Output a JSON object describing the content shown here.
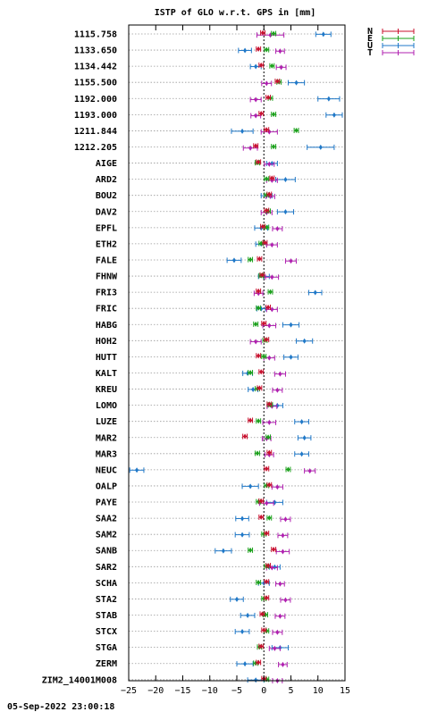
{
  "chart_data": {
    "type": "scatter",
    "title": "ISTP of GLO w.r.t. GPS in [mm]",
    "footer": "05-Sep-2022 23:00:18",
    "xlim": [
      -25,
      15
    ],
    "xticks": [
      -25,
      -20,
      -15,
      -10,
      -5,
      0,
      5,
      10,
      15
    ],
    "grid": true,
    "legend_position": "top-right",
    "series": [
      {
        "name": "N",
        "color": "#c8102e"
      },
      {
        "name": "E",
        "color": "#1aa01a"
      },
      {
        "name": "U",
        "color": "#1f78c8"
      },
      {
        "name": "T",
        "color": "#b020b0"
      }
    ],
    "stations": [
      {
        "label": "1115.758",
        "N": [
          -0.2,
          0.4
        ],
        "E": [
          1.8,
          0.4
        ],
        "U": [
          11,
          1.4
        ],
        "T": [
          1.2,
          2.5
        ]
      },
      {
        "label": "1133.650",
        "N": [
          -1.0,
          0.4
        ],
        "E": [
          0.5,
          0.4
        ],
        "U": [
          -3.5,
          1.2
        ],
        "T": [
          3.0,
          0.8
        ]
      },
      {
        "label": "1134.442",
        "N": [
          -0.5,
          0.4
        ],
        "E": [
          1.5,
          0.4
        ],
        "U": [
          -1.5,
          1.0
        ],
        "T": [
          3.2,
          0.9
        ]
      },
      {
        "label": "1155.500",
        "N": [
          2.5,
          0.4
        ],
        "E": [
          2.8,
          0.4
        ],
        "U": [
          6.0,
          1.5
        ],
        "T": [
          0.5,
          0.9
        ]
      },
      {
        "label": "1192.000",
        "N": [
          0.8,
          0.4
        ],
        "E": [
          1.2,
          0.4
        ],
        "U": [
          12,
          2.0
        ],
        "T": [
          -1.5,
          1.0
        ]
      },
      {
        "label": "1193.000",
        "N": [
          -0.5,
          0.4
        ],
        "E": [
          1.8,
          0.4
        ],
        "U": [
          13,
          1.5
        ],
        "T": [
          -1.5,
          0.9
        ]
      },
      {
        "label": "1211.844",
        "N": [
          0.5,
          0.4
        ],
        "E": [
          6.0,
          0.4
        ],
        "U": [
          -4.0,
          2.0
        ],
        "T": [
          1.0,
          1.5
        ]
      },
      {
        "label": "1212.205",
        "N": [
          -1.5,
          0.4
        ],
        "E": [
          1.8,
          0.4
        ],
        "U": [
          10.5,
          2.5
        ],
        "T": [
          -2.5,
          1.3
        ]
      },
      {
        "label": "AIGE",
        "N": [
          -1.0,
          0.4
        ],
        "E": [
          -1.2,
          0.4
        ],
        "U": [
          1.5,
          1.0
        ],
        "T": [
          1.0,
          0.9
        ]
      },
      {
        "label": "ARD2",
        "N": [
          1.5,
          0.4
        ],
        "E": [
          0.5,
          0.4
        ],
        "U": [
          4.0,
          1.8
        ],
        "T": [
          1.5,
          1.0
        ]
      },
      {
        "label": "BOU2",
        "N": [
          1.0,
          0.4
        ],
        "E": [
          0.5,
          0.4
        ],
        "U": [
          0.5,
          1.0
        ],
        "T": [
          1.2,
          0.8
        ]
      },
      {
        "label": "DAV2",
        "N": [
          0.5,
          0.4
        ],
        "E": [
          0.8,
          0.4
        ],
        "U": [
          4.0,
          1.5
        ],
        "T": [
          0.5,
          1.0
        ]
      },
      {
        "label": "EPFL",
        "N": [
          -0.2,
          0.4
        ],
        "E": [
          0.5,
          0.4
        ],
        "U": [
          -0.5,
          1.2
        ],
        "T": [
          2.5,
          0.9
        ]
      },
      {
        "label": "ETH2",
        "N": [
          0.2,
          0.4
        ],
        "E": [
          -0.5,
          0.4
        ],
        "U": [
          -0.5,
          1.0
        ],
        "T": [
          1.5,
          1.0
        ]
      },
      {
        "label": "FALE",
        "N": [
          -0.8,
          0.4
        ],
        "E": [
          -2.5,
          0.4
        ],
        "U": [
          -5.5,
          1.3
        ],
        "T": [
          5.0,
          1.0
        ]
      },
      {
        "label": "FHNW",
        "N": [
          -0.3,
          0.4
        ],
        "E": [
          -0.5,
          0.4
        ],
        "U": [
          0.0,
          1.0
        ],
        "T": [
          1.5,
          1.2
        ]
      },
      {
        "label": "FRI3",
        "N": [
          -1.0,
          0.4
        ],
        "E": [
          1.2,
          0.4
        ],
        "U": [
          9.5,
          1.2
        ],
        "T": [
          -1.0,
          0.8
        ]
      },
      {
        "label": "FRIC",
        "N": [
          0.8,
          0.4
        ],
        "E": [
          -1.0,
          0.4
        ],
        "U": [
          -0.5,
          0.8
        ],
        "T": [
          1.5,
          1.0
        ]
      },
      {
        "label": "HABG",
        "N": [
          0.0,
          0.4
        ],
        "E": [
          -1.5,
          0.4
        ],
        "U": [
          5.0,
          1.5
        ],
        "T": [
          1.0,
          1.2
        ]
      },
      {
        "label": "HOH2",
        "N": [
          0.5,
          0.4
        ],
        "E": [
          0.2,
          0.4
        ],
        "U": [
          7.5,
          1.5
        ],
        "T": [
          -1.5,
          1.0
        ]
      },
      {
        "label": "HUTT",
        "N": [
          -1.0,
          0.4
        ],
        "E": [
          0.0,
          0.4
        ],
        "U": [
          5.0,
          1.3
        ],
        "T": [
          1.0,
          1.0
        ]
      },
      {
        "label": "KALT",
        "N": [
          -0.5,
          0.4
        ],
        "E": [
          -2.5,
          0.4
        ],
        "U": [
          -3.0,
          0.9
        ],
        "T": [
          3.0,
          1.0
        ]
      },
      {
        "label": "KREU",
        "N": [
          -0.8,
          0.4
        ],
        "E": [
          -1.2,
          0.4
        ],
        "U": [
          -2.0,
          0.9
        ],
        "T": [
          2.5,
          0.9
        ]
      },
      {
        "label": "LOMO",
        "N": [
          1.0,
          0.4
        ],
        "E": [
          1.2,
          0.4
        ],
        "U": [
          2.5,
          1.0
        ],
        "T": [
          1.5,
          0.9
        ]
      },
      {
        "label": "LUZE",
        "N": [
          -2.5,
          0.4
        ],
        "E": [
          -1.0,
          0.4
        ],
        "U": [
          7.0,
          1.3
        ],
        "T": [
          1.0,
          1.2
        ]
      },
      {
        "label": "MAR2",
        "N": [
          -3.5,
          0.4
        ],
        "E": [
          0.8,
          0.4
        ],
        "U": [
          7.5,
          1.2
        ],
        "T": [
          0.5,
          0.8
        ]
      },
      {
        "label": "MAR3",
        "N": [
          1.0,
          0.4
        ],
        "E": [
          -1.2,
          0.4
        ],
        "U": [
          7.0,
          1.3
        ],
        "T": [
          1.0,
          0.8
        ]
      },
      {
        "label": "NEUC",
        "N": [
          0.5,
          0.4
        ],
        "E": [
          4.5,
          0.4
        ],
        "U": [
          -23.5,
          1.3
        ],
        "T": [
          8.5,
          1.0
        ]
      },
      {
        "label": "OALP",
        "N": [
          1.0,
          0.4
        ],
        "E": [
          0.5,
          0.4
        ],
        "U": [
          -2.5,
          1.5
        ],
        "T": [
          2.5,
          1.0
        ]
      },
      {
        "label": "PAYE",
        "N": [
          -0.5,
          0.4
        ],
        "E": [
          -1.0,
          0.4
        ],
        "U": [
          2.0,
          1.5
        ],
        "T": [
          0.5,
          1.3
        ]
      },
      {
        "label": "SAA2",
        "N": [
          -0.5,
          0.4
        ],
        "E": [
          1.0,
          0.4
        ],
        "U": [
          -4.0,
          1.2
        ],
        "T": [
          4.0,
          0.9
        ]
      },
      {
        "label": "SAM2",
        "N": [
          0.5,
          0.4
        ],
        "E": [
          0.0,
          0.4
        ],
        "U": [
          -4.0,
          1.3
        ],
        "T": [
          3.5,
          0.9
        ]
      },
      {
        "label": "SANB",
        "N": [
          1.8,
          0.4
        ],
        "E": [
          -2.5,
          0.4
        ],
        "U": [
          -7.5,
          1.5
        ],
        "T": [
          3.5,
          1.2
        ]
      },
      {
        "label": "SAR2",
        "N": [
          0.8,
          0.4
        ],
        "E": [
          0.5,
          0.4
        ],
        "U": [
          2.0,
          1.0
        ],
        "T": [
          1.5,
          1.0
        ]
      },
      {
        "label": "SCHA",
        "N": [
          0.5,
          0.4
        ],
        "E": [
          -1.0,
          0.4
        ],
        "U": [
          0.0,
          1.0
        ],
        "T": [
          3.0,
          0.8
        ]
      },
      {
        "label": "STA2",
        "N": [
          0.5,
          0.4
        ],
        "E": [
          0.0,
          0.4
        ],
        "U": [
          -5.0,
          1.2
        ],
        "T": [
          4.0,
          0.9
        ]
      },
      {
        "label": "STAB",
        "N": [
          -0.3,
          0.4
        ],
        "E": [
          0.3,
          0.4
        ],
        "U": [
          -3.0,
          1.3
        ],
        "T": [
          3.0,
          0.9
        ]
      },
      {
        "label": "STCX",
        "N": [
          0.0,
          0.4
        ],
        "E": [
          0.5,
          0.4
        ],
        "U": [
          -4.0,
          1.3
        ],
        "T": [
          2.5,
          0.9
        ]
      },
      {
        "label": "STGA",
        "N": [
          -0.5,
          0.4
        ],
        "E": [
          -0.8,
          0.4
        ],
        "U": [
          3.0,
          1.5
        ],
        "T": [
          2.0,
          1.0
        ]
      },
      {
        "label": "ZERM",
        "N": [
          -1.0,
          0.4
        ],
        "E": [
          -1.5,
          0.4
        ],
        "U": [
          -3.5,
          1.5
        ],
        "T": [
          3.5,
          0.8
        ]
      },
      {
        "label": "ZIM2_14001M008",
        "N": [
          0.0,
          0.4
        ],
        "E": [
          0.5,
          0.4
        ],
        "U": [
          -1.5,
          1.5
        ],
        "T": [
          2.5,
          0.9
        ]
      }
    ]
  }
}
